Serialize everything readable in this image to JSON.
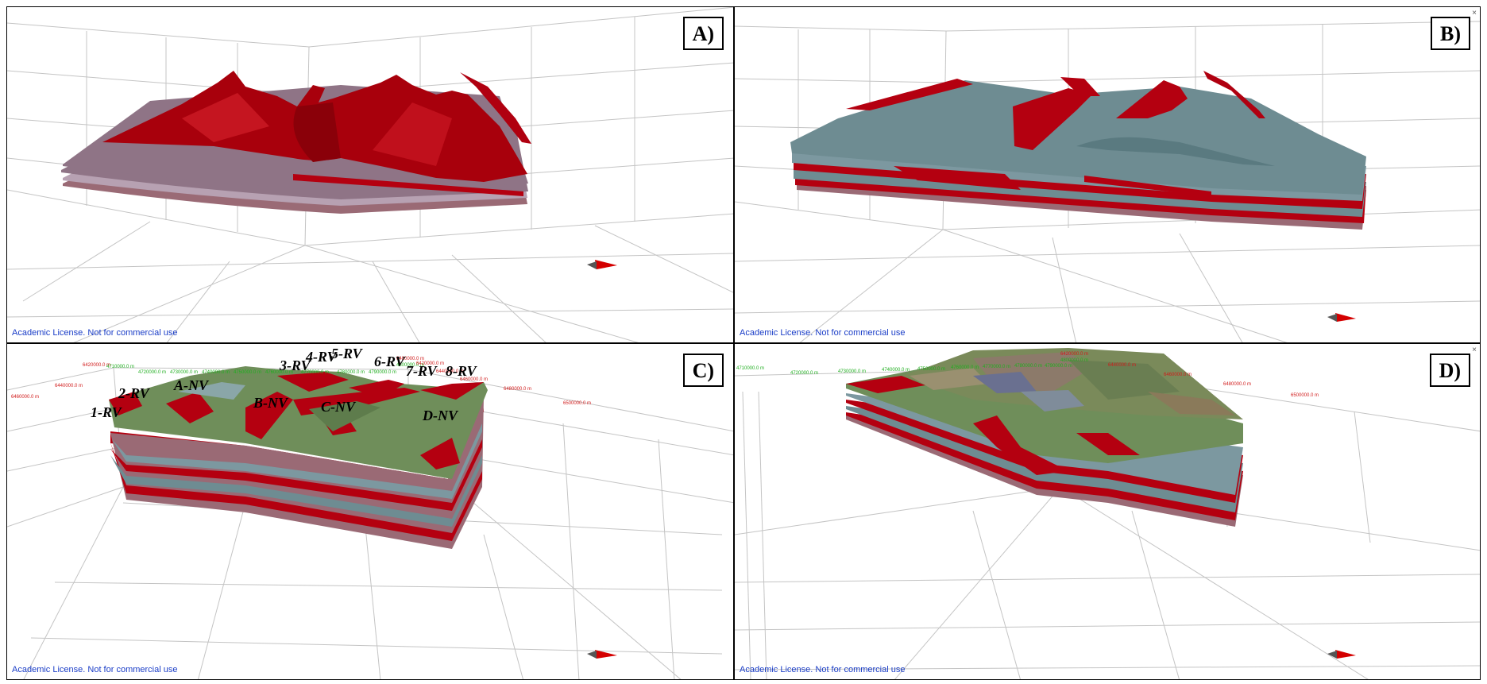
{
  "panels": [
    {
      "label": "A)",
      "license": "Academic License. Not for commercial use"
    },
    {
      "label": "B)",
      "license": "Academic License. Not for commercial use"
    },
    {
      "label": "C)",
      "license": "Academic License. Not for commercial use"
    },
    {
      "label": "D)",
      "license": "Academic License. Not for commercial use"
    }
  ],
  "unit_labels_c": [
    "1-RV",
    "2-RV",
    "A-NV",
    "3-RV",
    "4-RV",
    "5-RV",
    "6-RV",
    "7-RV",
    "8-RV",
    "B-NV",
    "C-NV",
    "D-NV"
  ],
  "axis_ticks_c": {
    "green": [
      "4710000.0 m",
      "4720000.0 m",
      "4730000.0 m",
      "4740000.0 m",
      "4750000.0 m",
      "4760000.0 m",
      "4770000.0 m",
      "4780000.0 m",
      "4790000.0 m",
      "4800000.0 m"
    ],
    "red": [
      "6420000.0 m",
      "6440000.0 m",
      "6460000.0 m",
      "6480000.0 m",
      "6420000.0 m",
      "6440000.0 m",
      "6460000.0 m",
      "6480000.0 m",
      "6500000.0 m"
    ]
  },
  "axis_ticks_d": {
    "green": [
      "4710000.0 m",
      "4720000.0 m",
      "4730000.0 m",
      "4740000.0 m",
      "4750000.0 m",
      "4760000.0 m",
      "4770000.0 m",
      "4780000.0 m",
      "4790000.0 m",
      "4800000.0 m"
    ],
    "red": [
      "6420000.0 m",
      "6440000.0 m",
      "6460000.0 m",
      "6480000.0 m",
      "6500000.0 m"
    ]
  },
  "close_glyph": "×",
  "colors": {
    "fault_red": "#b40010",
    "layer_mauve": "#8f7486",
    "layer_slate": "#6e8c92",
    "layer_green": "#6f8e5a",
    "grid_line": "#bfbfbf"
  }
}
